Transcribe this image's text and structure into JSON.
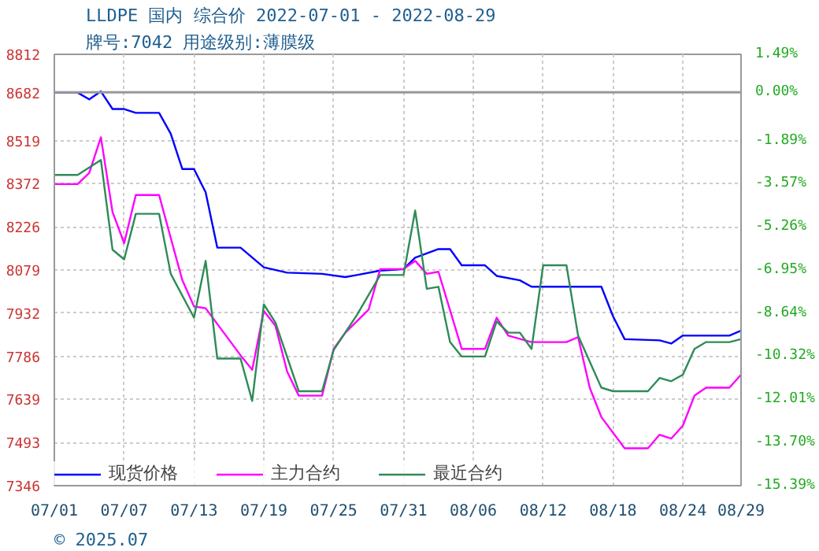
{
  "chart_data": {
    "type": "line",
    "title": "LLDPE 国内 综合价 2022-07-01 - 2022-08-29",
    "subtitle": "牌号:7042 用途级别:薄膜级",
    "xlim": [
      "2022-07-01",
      "2022-08-29"
    ],
    "xticks": [
      {
        "value": "2022-07-01",
        "label": "07/01"
      },
      {
        "value": "2022-07-07",
        "label": "07/07"
      },
      {
        "value": "2022-07-13",
        "label": "07/13"
      },
      {
        "value": "2022-07-19",
        "label": "07/19"
      },
      {
        "value": "2022-07-25",
        "label": "07/25"
      },
      {
        "value": "2022-07-31",
        "label": "07/31"
      },
      {
        "value": "2022-08-06",
        "label": "08/06"
      },
      {
        "value": "2022-08-12",
        "label": "08/12"
      },
      {
        "value": "2022-08-18",
        "label": "08/18"
      },
      {
        "value": "2022-08-24",
        "label": "08/24"
      },
      {
        "value": "2022-08-29",
        "label": "08/29"
      }
    ],
    "ylim": [
      7346,
      8812
    ],
    "yticks": [
      7346,
      7493,
      7639,
      7786,
      7932,
      8079,
      8226,
      8372,
      8519,
      8682,
      8812
    ],
    "y2lim": [
      -15.39,
      1.49
    ],
    "y2ticks": [
      {
        "value": -15.39,
        "label": "-15.39%"
      },
      {
        "value": -13.7,
        "label": "-13.70%"
      },
      {
        "value": -12.01,
        "label": "-12.01%"
      },
      {
        "value": -10.32,
        "label": "-10.32%"
      },
      {
        "value": -8.64,
        "label": "-8.64%"
      },
      {
        "value": -6.95,
        "label": "-6.95%"
      },
      {
        "value": -5.26,
        "label": "-5.26%"
      },
      {
        "value": -3.57,
        "label": "-3.57%"
      },
      {
        "value": -1.89,
        "label": "-1.89%"
      },
      {
        "value": 0,
        "label": "0.00%"
      },
      {
        "value": 1.49,
        "label": "1.49%"
      }
    ],
    "ref_lines": [
      {
        "axis": "y2",
        "value": 0,
        "color": "#999999"
      }
    ],
    "grid": true,
    "legend": "bottom left",
    "marker": "none",
    "line_style": "solid",
    "annotations": [
      "© 2025.07"
    ],
    "series": [
      {
        "name": "现货价格",
        "color": "#0000ff",
        "x": [
          "2022-07-01",
          "2022-07-03",
          "2022-07-04",
          "2022-07-05",
          "2022-07-06",
          "2022-07-07",
          "2022-07-08",
          "2022-07-10",
          "2022-07-11",
          "2022-07-12",
          "2022-07-13",
          "2022-07-14",
          "2022-07-15",
          "2022-07-17",
          "2022-07-19",
          "2022-07-21",
          "2022-07-24",
          "2022-07-26",
          "2022-07-27",
          "2022-07-29",
          "2022-07-31",
          "2022-08-01",
          "2022-08-03",
          "2022-08-04",
          "2022-08-05",
          "2022-08-07",
          "2022-08-08",
          "2022-08-10",
          "2022-08-11",
          "2022-08-17",
          "2022-08-18",
          "2022-08-19",
          "2022-08-22",
          "2022-08-23",
          "2022-08-24",
          "2022-08-28",
          "2022-08-29"
        ],
        "values": [
          8682,
          8682,
          8659,
          8686,
          8626,
          8626,
          8613,
          8613,
          8542,
          8422,
          8422,
          8343,
          8155,
          8155,
          8088,
          8070,
          8066,
          8055,
          8062,
          8077,
          8082,
          8121,
          8150,
          8150,
          8095,
          8095,
          8059,
          8044,
          8022,
          8022,
          7922,
          7844,
          7840,
          7829,
          7856,
          7856,
          7873
        ]
      },
      {
        "name": "主力合约",
        "color": "#ff00ff",
        "x": [
          "2022-07-01",
          "2022-07-03",
          "2022-07-04",
          "2022-07-05",
          "2022-07-06",
          "2022-07-07",
          "2022-07-08",
          "2022-07-10",
          "2022-07-11",
          "2022-07-12",
          "2022-07-13",
          "2022-07-14",
          "2022-07-17",
          "2022-07-18",
          "2022-07-19",
          "2022-07-20",
          "2022-07-21",
          "2022-07-22",
          "2022-07-24",
          "2022-07-25",
          "2022-07-26",
          "2022-07-28",
          "2022-07-29",
          "2022-07-31",
          "2022-08-01",
          "2022-08-02",
          "2022-08-03",
          "2022-08-05",
          "2022-08-07",
          "2022-08-08",
          "2022-08-09",
          "2022-08-11",
          "2022-08-14",
          "2022-08-15",
          "2022-08-16",
          "2022-08-17",
          "2022-08-19",
          "2022-08-21",
          "2022-08-22",
          "2022-08-23",
          "2022-08-24",
          "2022-08-25",
          "2022-08-26",
          "2022-08-28",
          "2022-08-29"
        ],
        "values": [
          8371,
          8371,
          8409,
          8530,
          8276,
          8170,
          8334,
          8334,
          8188,
          8044,
          7955,
          7949,
          7789,
          7740,
          7940,
          7889,
          7734,
          7652,
          7652,
          7811,
          7866,
          7944,
          8082,
          8082,
          8110,
          8066,
          8073,
          7811,
          7811,
          7917,
          7856,
          7834,
          7834,
          7851,
          7679,
          7579,
          7473,
          7473,
          7519,
          7506,
          7550,
          7652,
          7679,
          7679,
          7723
        ]
      },
      {
        "name": "最近合约",
        "color": "#2e8b57",
        "x": [
          "2022-07-01",
          "2022-07-03",
          "2022-07-05",
          "2022-07-06",
          "2022-07-07",
          "2022-07-08",
          "2022-07-10",
          "2022-07-11",
          "2022-07-13",
          "2022-07-14",
          "2022-07-15",
          "2022-07-17",
          "2022-07-18",
          "2022-07-19",
          "2022-07-20",
          "2022-07-22",
          "2022-07-24",
          "2022-07-25",
          "2022-07-27",
          "2022-07-29",
          "2022-07-31",
          "2022-08-01",
          "2022-08-02",
          "2022-08-03",
          "2022-08-04",
          "2022-08-05",
          "2022-08-07",
          "2022-08-08",
          "2022-08-09",
          "2022-08-10",
          "2022-08-11",
          "2022-08-12",
          "2022-08-14",
          "2022-08-15",
          "2022-08-17",
          "2022-08-18",
          "2022-08-21",
          "2022-08-22",
          "2022-08-23",
          "2022-08-24",
          "2022-08-25",
          "2022-08-26",
          "2022-08-28",
          "2022-08-29"
        ],
        "values": [
          8402,
          8402,
          8453,
          8148,
          8115,
          8270,
          8270,
          8066,
          7917,
          8110,
          7778,
          7778,
          7634,
          7962,
          7900,
          7667,
          7667,
          7807,
          7926,
          8062,
          8062,
          8281,
          8015,
          8022,
          7834,
          7785,
          7785,
          7904,
          7866,
          7866,
          7811,
          8095,
          8095,
          7856,
          7679,
          7667,
          7667,
          7712,
          7701,
          7723,
          7811,
          7834,
          7834,
          7844
        ]
      }
    ]
  }
}
